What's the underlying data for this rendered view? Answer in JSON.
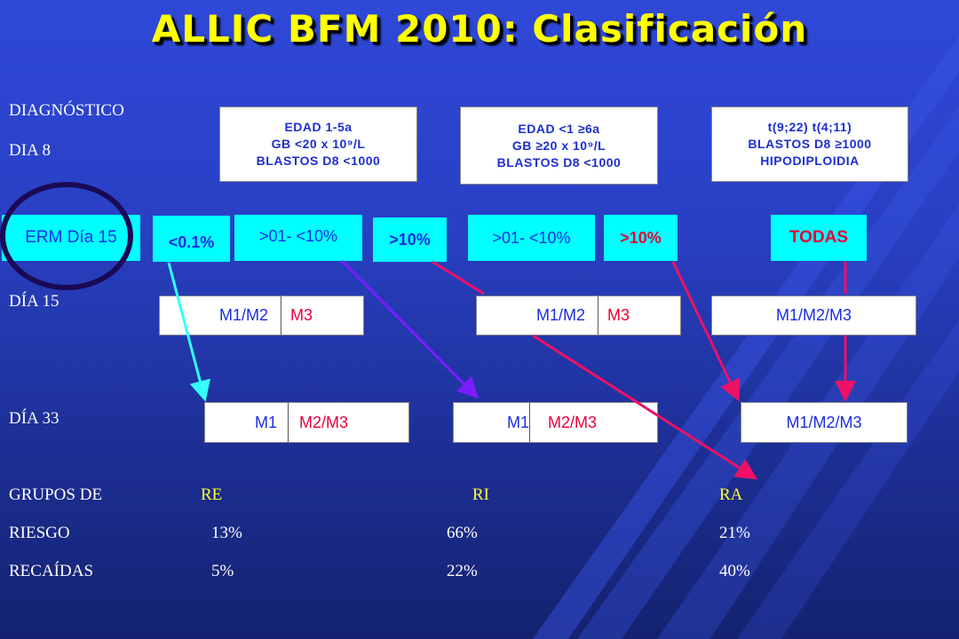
{
  "title": "ALLIC BFM 2010: Clasificación",
  "row_labels": {
    "diagnostico": "DIAGNÓSTICO",
    "dia8": "DIA 8",
    "dia15": "DÍA 15",
    "dia33": "DÍA 33",
    "grupos_line1": "GRUPOS DE",
    "riesgo": "RIESGO",
    "recaidas": "RECAÍDAS"
  },
  "criteria": {
    "re": [
      "EDAD 1-5a",
      "GB <20 x 10⁹/L",
      "BLASTOS D8 <1000"
    ],
    "ri": [
      "EDAD <1   ≥6a",
      "GB ≥20 x 10⁹/L",
      "BLASTOS D8 <1000"
    ],
    "ra": [
      "t(9;22) t(4;11)",
      "BLASTOS D8 ≥1000",
      "HIPODIPLOIDIA"
    ]
  },
  "erm": {
    "label": "ERM Día 15",
    "lt01": "<0.1%",
    "range1": ">01- <10%",
    "gt10_a": ">10%",
    "range2": ">01- <10%",
    "gt10_b": ">10%",
    "todas": "TODAS"
  },
  "dia15_boxes": {
    "re": {
      "a": "M1/M2",
      "b": "M3"
    },
    "ri": {
      "a": "M1/M2",
      "b": "M3"
    },
    "ra": {
      "a": "M1/M2/M3"
    }
  },
  "dia33_boxes": {
    "re": {
      "a": "M1",
      "b": "M2/M3"
    },
    "ri": {
      "a": "M1",
      "b": "M2/M3"
    },
    "ra": {
      "a": "M1/M2/M3"
    }
  },
  "groups": {
    "re": {
      "name": "RE",
      "riesgo": "13%",
      "recaidas": "5%"
    },
    "ri": {
      "name": "RI",
      "riesgo": "66%",
      "recaidas": "22%"
    },
    "ra": {
      "name": "RA",
      "riesgo": "21%",
      "recaidas": "40%"
    }
  },
  "colors": {
    "background": "#2940c4",
    "title": "#ffff00",
    "cyan_box": "#00ffff",
    "text_blue": "#1a2ee0",
    "text_red": "#e8003a",
    "arrow_cyan": "#33ffff",
    "arrow_purple": "#7a1cff",
    "arrow_red": "#ee1166",
    "circle": "#1a0a55"
  }
}
